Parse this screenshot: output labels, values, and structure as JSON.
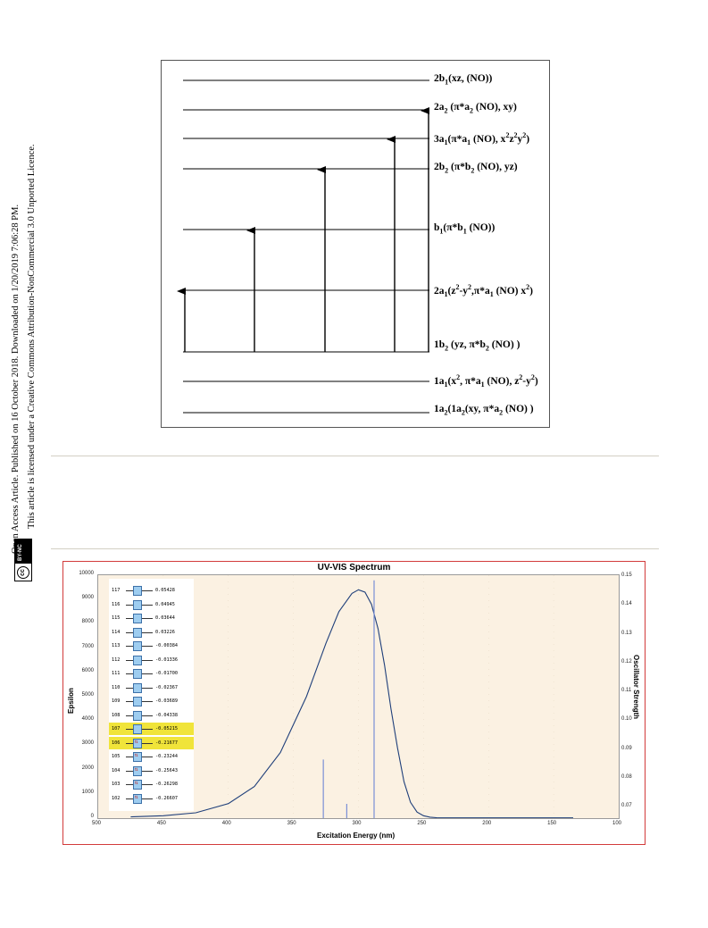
{
  "sidebar": {
    "line1": "Open Access Article. Published on 16 October 2018. Downloaded on 1/20/2019 7:06:28 PM.",
    "line2": "This article is licensed under a Creative Commons Attribution-NonCommercial 3.0 Unported Licence.",
    "badge_cc": "cc",
    "badge_text": "BY-NC"
  },
  "mo_diagram": {
    "levels": [
      {
        "label_html": "2b<sub>1</sub>(xz, (NO))"
      },
      {
        "label_html": "2a<sub>2</sub> (&pi;*a<sub>2</sub> (NO), xy)"
      },
      {
        "label_html": "3a<sub>1</sub>(&pi;*a<sub>1</sub> (NO), x<sup>2</sup>z<sup>2</sup>y<sup>2</sup>)"
      },
      {
        "label_html": "2b<sub>2</sub> (&pi;*b<sub>2</sub> (NO), yz)"
      },
      {
        "label_html": "b<sub>1</sub>(&pi;*b<sub>1</sub> (NO))"
      },
      {
        "label_html": "2a<sub>1</sub>(z<sup>2</sup>-y<sup>2</sup>,&pi;*a<sub>1</sub> (NO) x<sup>2</sup>)"
      },
      {
        "label_html": "1b<sub>2</sub> (yz, &pi;*b<sub>2</sub> (NO) )"
      },
      {
        "label_html": "1a<sub>1</sub>(x<sup>2</sup>, &pi;*a<sub>1</sub> (NO), z<sup>2</sup>-y<sup>2</sup>)"
      },
      {
        "label_html": "1a<sub>2</sub>(1a<sub>2</sub>(xy, &pi;*a<sub>2</sub> (NO) )"
      }
    ]
  },
  "uv_chart": {
    "title": "UV-VIS Spectrum",
    "x_title": "Excitation Energy (nm)",
    "y_title_left": "Epsilon",
    "y_title_right": "Oscillator Strength",
    "x_ticks": [
      "500",
      "450",
      "400",
      "350",
      "300",
      "250",
      "200",
      "150",
      "100"
    ],
    "y_ticks_left": [
      "10000",
      "9000",
      "8000",
      "7000",
      "6000",
      "5000",
      "4000",
      "3000",
      "2000",
      "1000",
      "0"
    ],
    "y_ticks_right": [
      "0.15",
      "0.14",
      "0.13",
      "0.12",
      "0.11",
      "0.10",
      "0.09",
      "0.08",
      "0.07"
    ],
    "orbitals": [
      {
        "num": "117",
        "val": "0.05428",
        "occ": false,
        "hl": false
      },
      {
        "num": "116",
        "val": "0.04945",
        "occ": false,
        "hl": false
      },
      {
        "num": "115",
        "val": "0.03644",
        "occ": false,
        "hl": false
      },
      {
        "num": "114",
        "val": "0.03226",
        "occ": false,
        "hl": false
      },
      {
        "num": "113",
        "val": "-0.00384",
        "occ": false,
        "hl": false
      },
      {
        "num": "112",
        "val": "-0.01336",
        "occ": false,
        "hl": false
      },
      {
        "num": "111",
        "val": "-0.01700",
        "occ": false,
        "hl": false
      },
      {
        "num": "110",
        "val": "-0.02367",
        "occ": false,
        "hl": false
      },
      {
        "num": "109",
        "val": "-0.03689",
        "occ": false,
        "hl": false
      },
      {
        "num": "108",
        "val": "-0.04338",
        "occ": false,
        "hl": false
      },
      {
        "num": "107",
        "val": "-0.05215",
        "occ": false,
        "hl": true
      },
      {
        "num": "106",
        "val": "-0.21677",
        "occ": true,
        "hl": true
      },
      {
        "num": "105",
        "val": "-0.23244",
        "occ": true,
        "hl": false
      },
      {
        "num": "104",
        "val": "-0.25643",
        "occ": true,
        "hl": false
      },
      {
        "num": "103",
        "val": "-0.26298",
        "occ": true,
        "hl": false
      },
      {
        "num": "102",
        "val": "-0.26607",
        "occ": true,
        "hl": false
      }
    ]
  },
  "chart_data": {
    "type": "line",
    "title": "UV-VIS Spectrum",
    "xlabel": "Excitation Energy (nm)",
    "ylabel": "Epsilon",
    "y2label": "Oscillator Strength",
    "xlim": [
      500,
      100
    ],
    "ylim": [
      0,
      10000
    ],
    "y2lim": [
      0.07,
      0.15
    ],
    "series": [
      {
        "x": [
          475,
          450,
          425,
          400,
          380,
          360,
          340,
          325,
          315,
          305,
          300,
          295,
          290,
          285,
          280,
          275,
          270,
          265,
          260,
          255,
          250,
          245,
          240,
          220,
          200,
          160,
          135
        ],
        "y": [
          50,
          100,
          220,
          600,
          1300,
          2700,
          5000,
          7200,
          8500,
          9250,
          9400,
          9300,
          8800,
          7800,
          6300,
          4500,
          2900,
          1500,
          650,
          250,
          100,
          40,
          20,
          10,
          10,
          10,
          10
        ]
      },
      {
        "type": "stick",
        "x": [
          327,
          309,
          288
        ],
        "y": [
          0.0893,
          0.0747,
          0.1483
        ]
      }
    ]
  }
}
